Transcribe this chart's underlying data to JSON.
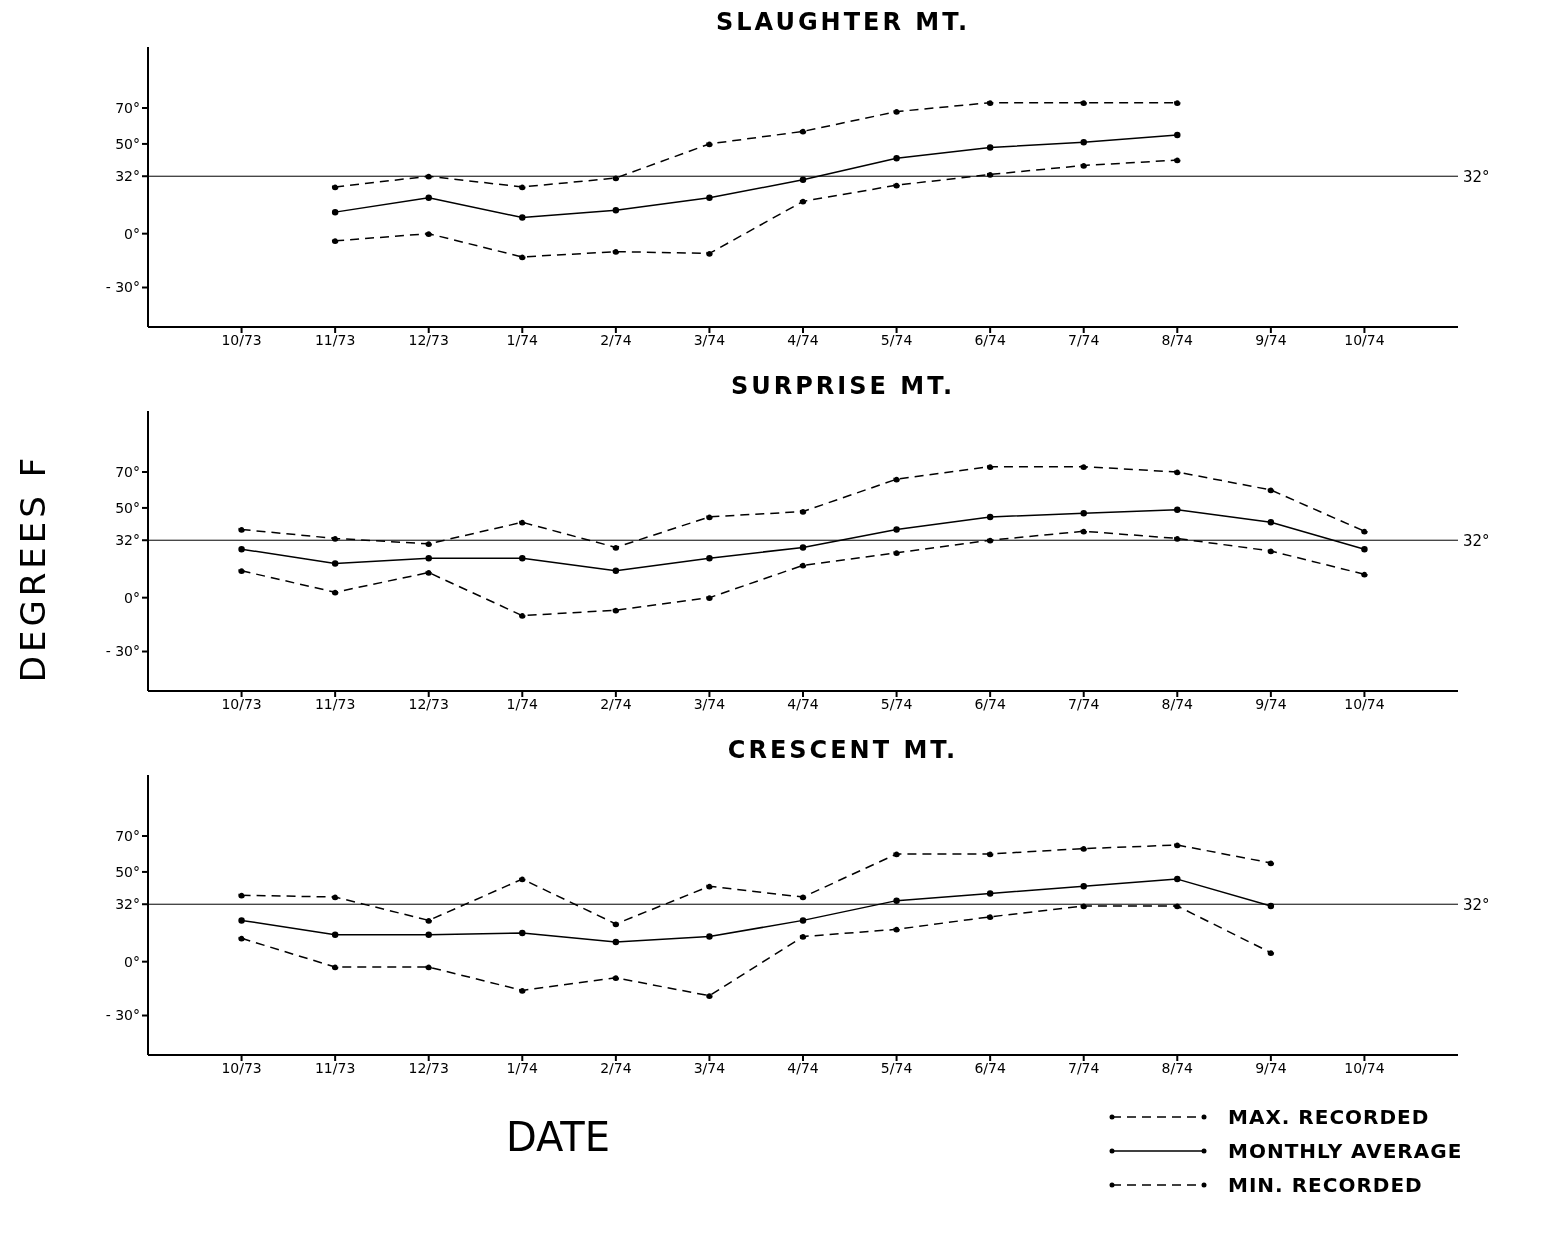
{
  "chart_data": [
    {
      "type": "line",
      "title": "SLAUGHTER MT.",
      "categories": [
        "10/73",
        "11/73",
        "12/73",
        "1/74",
        "2/74",
        "3/74",
        "4/74",
        "5/74",
        "6/74",
        "7/74",
        "8/74",
        "9/74",
        "10/74"
      ],
      "ylim": [
        -52,
        104
      ],
      "yticks": [
        {
          "value": -30,
          "label": "- 30°"
        },
        {
          "value": 0,
          "label": "0°"
        },
        {
          "value": 32,
          "label": "32°"
        },
        {
          "value": 50,
          "label": "50°"
        },
        {
          "value": 70,
          "label": "70°"
        }
      ],
      "marker": "circle",
      "legend": false,
      "ref_lines": [
        {
          "axis": "y",
          "value": 32,
          "label": "32°",
          "color": "#000000"
        }
      ],
      "series": [
        {
          "color": "#000000",
          "line_style": "dashed",
          "values": [
            null,
            26,
            32,
            26,
            31,
            50,
            57,
            68,
            73,
            73,
            73,
            null,
            null
          ]
        },
        {
          "color": "#000000",
          "line_style": "solid",
          "values": [
            null,
            12,
            20,
            9,
            13,
            20,
            30,
            42,
            48,
            51,
            55,
            null,
            null
          ]
        },
        {
          "color": "#000000",
          "line_style": "dashed",
          "values": [
            null,
            -4,
            0,
            -13,
            -10,
            -11,
            18,
            27,
            33,
            38,
            41,
            null,
            null
          ]
        }
      ]
    },
    {
      "type": "line",
      "title": "SURPRISE  MT.",
      "ylabel": "DEGREES F",
      "categories": [
        "10/73",
        "11/73",
        "12/73",
        "1/74",
        "2/74",
        "3/74",
        "4/74",
        "5/74",
        "6/74",
        "7/74",
        "8/74",
        "9/74",
        "10/74"
      ],
      "ylim": [
        -52,
        104
      ],
      "yticks": [
        {
          "value": -30,
          "label": "- 30°"
        },
        {
          "value": 0,
          "label": "0°"
        },
        {
          "value": 32,
          "label": "32°"
        },
        {
          "value": 50,
          "label": "50°"
        },
        {
          "value": 70,
          "label": "70°"
        }
      ],
      "marker": "circle",
      "legend": false,
      "ref_lines": [
        {
          "axis": "y",
          "value": 32,
          "label": "32°",
          "color": "#000000"
        }
      ],
      "series": [
        {
          "color": "#000000",
          "line_style": "dashed",
          "values": [
            38,
            33,
            30,
            42,
            28,
            45,
            48,
            66,
            73,
            73,
            70,
            60,
            37
          ]
        },
        {
          "color": "#000000",
          "line_style": "solid",
          "values": [
            27,
            19,
            22,
            22,
            15,
            22,
            28,
            38,
            45,
            47,
            49,
            42,
            27
          ]
        },
        {
          "color": "#000000",
          "line_style": "dashed",
          "values": [
            15,
            3,
            14,
            -10,
            -7,
            0,
            18,
            25,
            32,
            37,
            33,
            26,
            13
          ]
        }
      ]
    },
    {
      "type": "line",
      "title": "CRESCENT  MT.",
      "xlabel": "DATE",
      "categories": [
        "10/73",
        "11/73",
        "12/73",
        "1/74",
        "2/74",
        "3/74",
        "4/74",
        "5/74",
        "6/74",
        "7/74",
        "8/74",
        "9/74",
        "10/74"
      ],
      "ylim": [
        -52,
        104
      ],
      "yticks": [
        {
          "value": -30,
          "label": "- 30°"
        },
        {
          "value": 0,
          "label": "0°"
        },
        {
          "value": 32,
          "label": "32°"
        },
        {
          "value": 50,
          "label": "50°"
        },
        {
          "value": 70,
          "label": "70°"
        }
      ],
      "marker": "circle",
      "legend": "bottom right",
      "ref_lines": [
        {
          "axis": "y",
          "value": 32,
          "label": "32°",
          "color": "#000000"
        }
      ],
      "series": [
        {
          "name": "MAX. RECORDED",
          "color": "#000000",
          "line_style": "dashed",
          "values": [
            37,
            36,
            23,
            46,
            21,
            42,
            36,
            60,
            60,
            63,
            65,
            55,
            null
          ]
        },
        {
          "name": "MONTHLY AVERAGE",
          "color": "#000000",
          "line_style": "solid",
          "values": [
            23,
            15,
            15,
            16,
            11,
            14,
            23,
            34,
            38,
            42,
            46,
            31,
            null
          ]
        },
        {
          "name": "MIN. RECORDED",
          "color": "#000000",
          "line_style": "dashed",
          "values": [
            13,
            -3,
            -3,
            -16,
            -9,
            -19,
            14,
            18,
            25,
            31,
            31,
            5,
            null
          ]
        }
      ]
    }
  ]
}
